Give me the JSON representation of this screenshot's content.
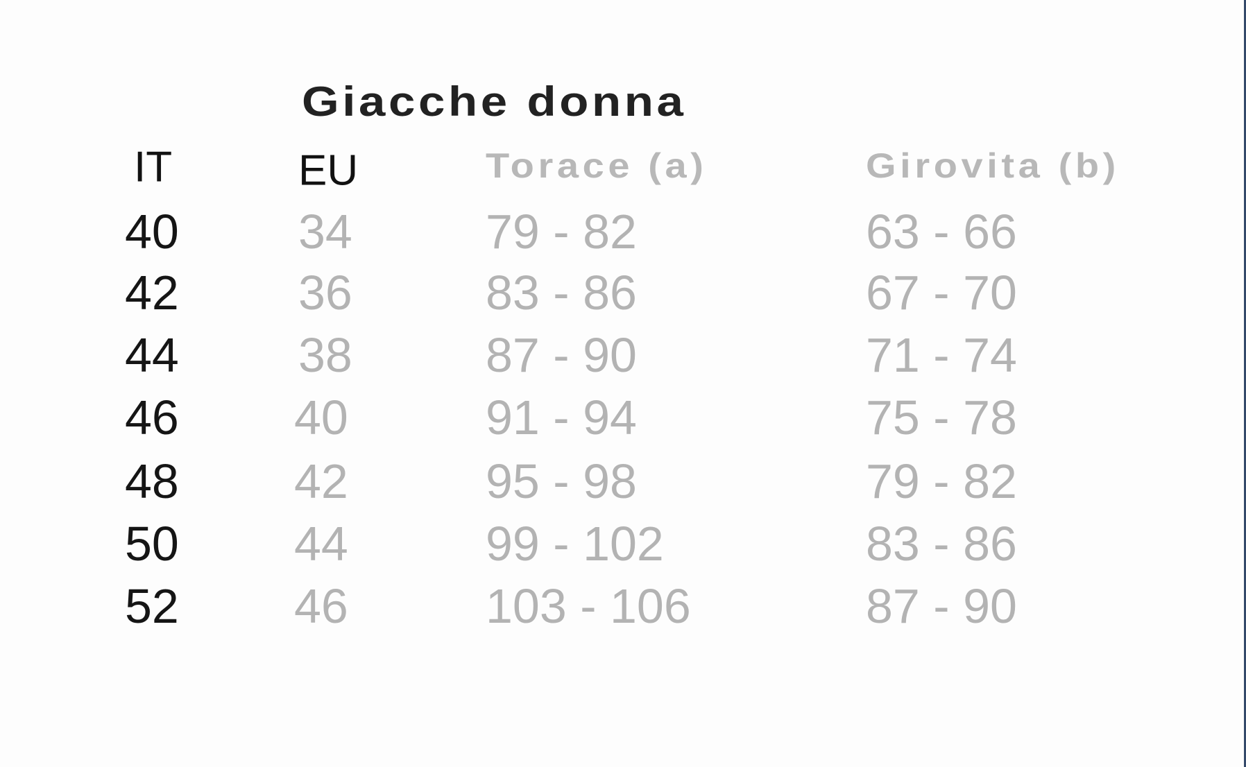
{
  "title": "Giacche donna",
  "headers": [
    "IT",
    "EU",
    "Torace (a)",
    "Girovita (b)"
  ],
  "rows": [
    [
      "40",
      "34",
      "79 - 82",
      "63 - 66"
    ],
    [
      "42",
      "36",
      "83 - 86",
      "67 - 70"
    ],
    [
      "44",
      "38",
      "87 - 90",
      "71 - 74"
    ],
    [
      "46",
      "40",
      "91 - 94",
      "75 - 78"
    ],
    [
      "48",
      "42",
      "95 - 98",
      "79 - 82"
    ],
    [
      "50",
      "44",
      "99 - 102",
      "83 - 86"
    ],
    [
      "52",
      "46",
      "103 - 106",
      "87 - 90"
    ]
  ]
}
